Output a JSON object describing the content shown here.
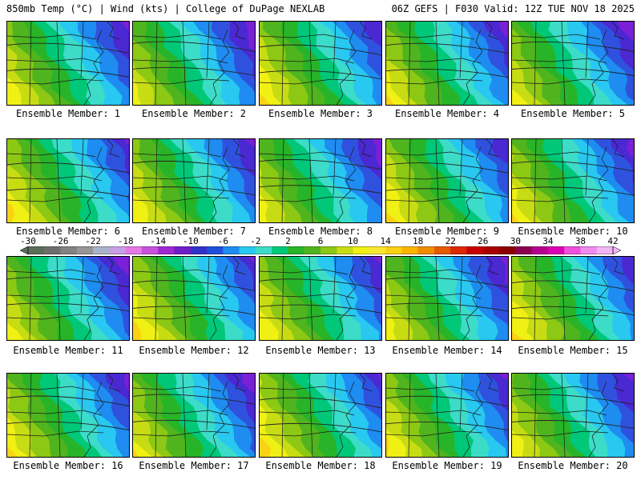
{
  "header": {
    "left_title": "850mb Temp (°C) | Wind (kts) | College of DuPage NEXLAB",
    "right_title": "06Z GEFS | F030 Valid: 12Z TUE NOV 18 2025"
  },
  "panels": [
    {
      "label": "Ensemble Member: 1"
    },
    {
      "label": "Ensemble Member: 2"
    },
    {
      "label": "Ensemble Member: 3"
    },
    {
      "label": "Ensemble Member: 4"
    },
    {
      "label": "Ensemble Member: 5"
    },
    {
      "label": "Ensemble Member: 6"
    },
    {
      "label": "Ensemble Member: 7"
    },
    {
      "label": "Ensemble Member: 8"
    },
    {
      "label": "Ensemble Member: 9"
    },
    {
      "label": "Ensemble Member: 10"
    },
    {
      "label": "Ensemble Member: 11"
    },
    {
      "label": "Ensemble Member: 12"
    },
    {
      "label": "Ensemble Member: 13"
    },
    {
      "label": "Ensemble Member: 14"
    },
    {
      "label": "Ensemble Member: 15"
    },
    {
      "label": "Ensemble Member: 16"
    },
    {
      "label": "Ensemble Member: 17"
    },
    {
      "label": "Ensemble Member: 18"
    },
    {
      "label": "Ensemble Member: 19"
    },
    {
      "label": "Ensemble Member: 20"
    }
  ],
  "colorbar": {
    "ticks": [
      "-30",
      "-26",
      "-22",
      "-18",
      "-14",
      "-10",
      "-6",
      "-2",
      "2",
      "6",
      "10",
      "14",
      "18",
      "22",
      "26",
      "30",
      "34",
      "38",
      "42"
    ],
    "colors": [
      "#5a6e5a",
      "#6e6e6e",
      "#828282",
      "#969696",
      "#aab4c8",
      "#c8a0e6",
      "#e678e6",
      "#c850dc",
      "#a028d2",
      "#6e1ec8",
      "#3232c8",
      "#1e50dc",
      "#1e8cf0",
      "#28c8f0",
      "#3cdcc8",
      "#00c878",
      "#28b428",
      "#50b41e",
      "#8cc814",
      "#c8dc14",
      "#f0f014",
      "#fae632",
      "#fad214",
      "#fab400",
      "#f08c00",
      "#e65a00",
      "#dc2800",
      "#c80000",
      "#aa0000",
      "#8c0000",
      "#8c0050",
      "#b4008c",
      "#dc00b4",
      "#f050dc",
      "#f08cf0",
      "#f5b4f5"
    ]
  }
}
